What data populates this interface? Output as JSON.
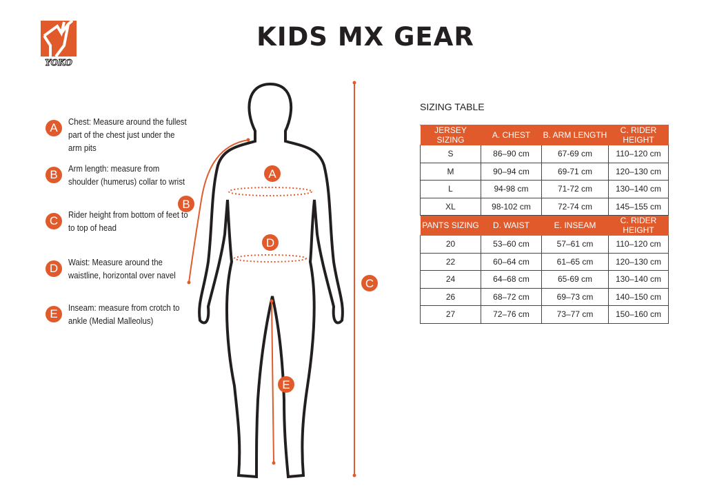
{
  "title": "KIDS MX GEAR",
  "logo": {
    "text": "YOKO",
    "color": "#e05a2b"
  },
  "accent": "#e05a2b",
  "legend": [
    {
      "letter": "A",
      "text": "Chest: Measure around  the fullest part of the chest just under the arm pits"
    },
    {
      "letter": "B",
      "text": "Arm length: measure from shoulder (humerus) collar to wrist"
    },
    {
      "letter": "C",
      "text": "Rider height from bottom of feet to to top of head"
    },
    {
      "letter": "D",
      "text": "Waist: Measure around the waistline, horizontal over navel"
    },
    {
      "letter": "E",
      "text": "Inseam: measure from crotch to ankle (Medial Malleolus)"
    }
  ],
  "table_title": "SIZING TABLE",
  "jersey": {
    "headers": [
      "JERSEY SIZING",
      "A. CHEST",
      "B. ARM LENGTH",
      "C. RIDER HEIGHT"
    ],
    "rows": [
      [
        "S",
        "86–90 cm",
        "67-69 cm",
        "110–120 cm"
      ],
      [
        "M",
        "90–94 cm",
        "69-71 cm",
        "120–130 cm"
      ],
      [
        "L",
        "94-98 cm",
        "71-72 cm",
        "130–140 cm"
      ],
      [
        "XL",
        "98-102 cm",
        "72-74 cm",
        "145–155 cm"
      ]
    ]
  },
  "pants": {
    "headers": [
      "PANTS SIZING",
      "D. WAIST",
      "E. INSEAM",
      "C. RIDER HEIGHT"
    ],
    "rows": [
      [
        "20",
        "53–60 cm",
        "57–61 cm",
        "110–120 cm"
      ],
      [
        "22",
        "60–64 cm",
        "61–65 cm",
        "120–130 cm"
      ],
      [
        "24",
        "64–68 cm",
        "65-69 cm",
        "130–140 cm"
      ],
      [
        "26",
        "68–72 cm",
        "69–73 cm",
        "140–150 cm"
      ],
      [
        "27",
        "72–76 cm",
        "73–77 cm",
        "150–160 cm"
      ]
    ]
  }
}
